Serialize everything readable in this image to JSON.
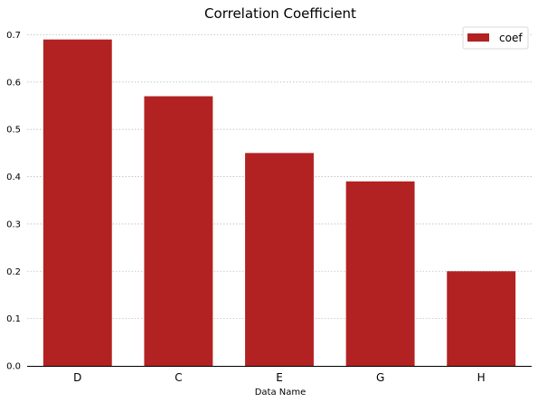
{
  "chart_data": {
    "type": "bar",
    "title": "Correlation Coefficient",
    "xlabel": "Data Name",
    "ylabel": "",
    "categories": [
      "D",
      "C",
      "E",
      "G",
      "H"
    ],
    "series": [
      {
        "name": "coef",
        "values": [
          0.69,
          0.57,
          0.45,
          0.39,
          0.2
        ]
      }
    ],
    "ylim": [
      0,
      0.72
    ],
    "yticks": [
      "0.0",
      "0.1",
      "0.2",
      "0.3",
      "0.4",
      "0.5",
      "0.6",
      "0.7"
    ],
    "grid": "y",
    "legend_position": "top-right",
    "bar_color": "#b22222"
  }
}
